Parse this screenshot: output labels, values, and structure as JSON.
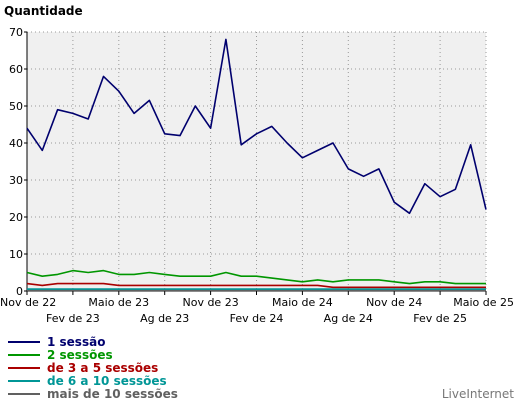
{
  "chart_data": {
    "type": "line",
    "ylabel": "Quantidade",
    "ylim": [
      0,
      70
    ],
    "yticks": [
      0,
      10,
      20,
      30,
      40,
      50,
      60,
      70
    ],
    "grid": true,
    "x_tick_labels_row1": [
      {
        "label": "Nov de 22",
        "month": 0
      },
      {
        "label": "Maio de 23",
        "month": 6
      },
      {
        "label": "Nov de 23",
        "month": 12
      },
      {
        "label": "Maio de 24",
        "month": 18
      },
      {
        "label": "Nov de 24",
        "month": 24
      },
      {
        "label": "Maio de 25",
        "month": 30
      }
    ],
    "x_tick_labels_row2": [
      {
        "label": "Fev de 23",
        "month": 3
      },
      {
        "label": "Ag de 23",
        "month": 9
      },
      {
        "label": "Fev de 24",
        "month": 15
      },
      {
        "label": "Ag de 24",
        "month": 21
      },
      {
        "label": "Fev de 25",
        "month": 27
      }
    ],
    "x_months": [
      0,
      1,
      2,
      3,
      4,
      5,
      6,
      7,
      8,
      9,
      10,
      11,
      12,
      13,
      14,
      15,
      16,
      17,
      18,
      19,
      20,
      21,
      22,
      23,
      24,
      25,
      26,
      27,
      28,
      29,
      30
    ],
    "series": [
      {
        "name": "1 sessão",
        "color": "#00006e",
        "values": [
          44,
          38,
          49,
          48,
          46.5,
          58,
          54,
          48,
          51.5,
          42.5,
          42,
          50,
          44,
          68,
          39.5,
          42.5,
          44.5,
          40,
          36,
          38,
          40,
          33,
          31,
          33,
          24,
          21,
          29,
          25.5,
          27.5,
          39.5,
          22
        ]
      },
      {
        "name": "2 sessões",
        "color": "#009600",
        "values": [
          5,
          4,
          4.5,
          5.5,
          5,
          5.5,
          4.5,
          4.5,
          5,
          4.5,
          4,
          4,
          4,
          5,
          4,
          4,
          3.5,
          3,
          2.5,
          3,
          2.5,
          3,
          3,
          3,
          2.5,
          2,
          2.5,
          2.5,
          2,
          2,
          2
        ]
      },
      {
        "name": "de 3 a 5 sessões",
        "color": "#aa0000",
        "values": [
          2,
          1.5,
          2,
          2,
          2,
          2,
          1.5,
          1.5,
          1.5,
          1.5,
          1.5,
          1.5,
          1.5,
          1.5,
          1.5,
          1.5,
          1.5,
          1.5,
          1.5,
          1.5,
          1,
          1,
          1,
          1,
          1,
          1,
          1,
          1,
          1,
          1,
          1
        ]
      },
      {
        "name": "de 6 a 10 sessões",
        "color": "#009696",
        "values": [
          0.5,
          0.5,
          0.5,
          0.5,
          0.5,
          0.5,
          0.5,
          0.5,
          0.5,
          0.5,
          0.5,
          0.5,
          0.5,
          0.5,
          0.5,
          0.5,
          0.5,
          0.5,
          0.5,
          0.5,
          0.5,
          0.5,
          0.5,
          0.5,
          0.5,
          0.5,
          0.5,
          0.5,
          0.5,
          0.5,
          0.5
        ]
      },
      {
        "name": "mais de 10 sessões",
        "color": "#606060",
        "values": [
          0.2,
          0.2,
          0.2,
          0.2,
          0.2,
          0.2,
          0.2,
          0.2,
          0.2,
          0.2,
          0.2,
          0.2,
          0.2,
          0.2,
          0.2,
          0.2,
          0.2,
          0.2,
          0.2,
          0.2,
          0.2,
          0.2,
          0.2,
          0.2,
          0.2,
          0.2,
          0.2,
          0.2,
          0.2,
          0.2,
          0.2
        ]
      }
    ]
  },
  "credit": "LiveInternet"
}
